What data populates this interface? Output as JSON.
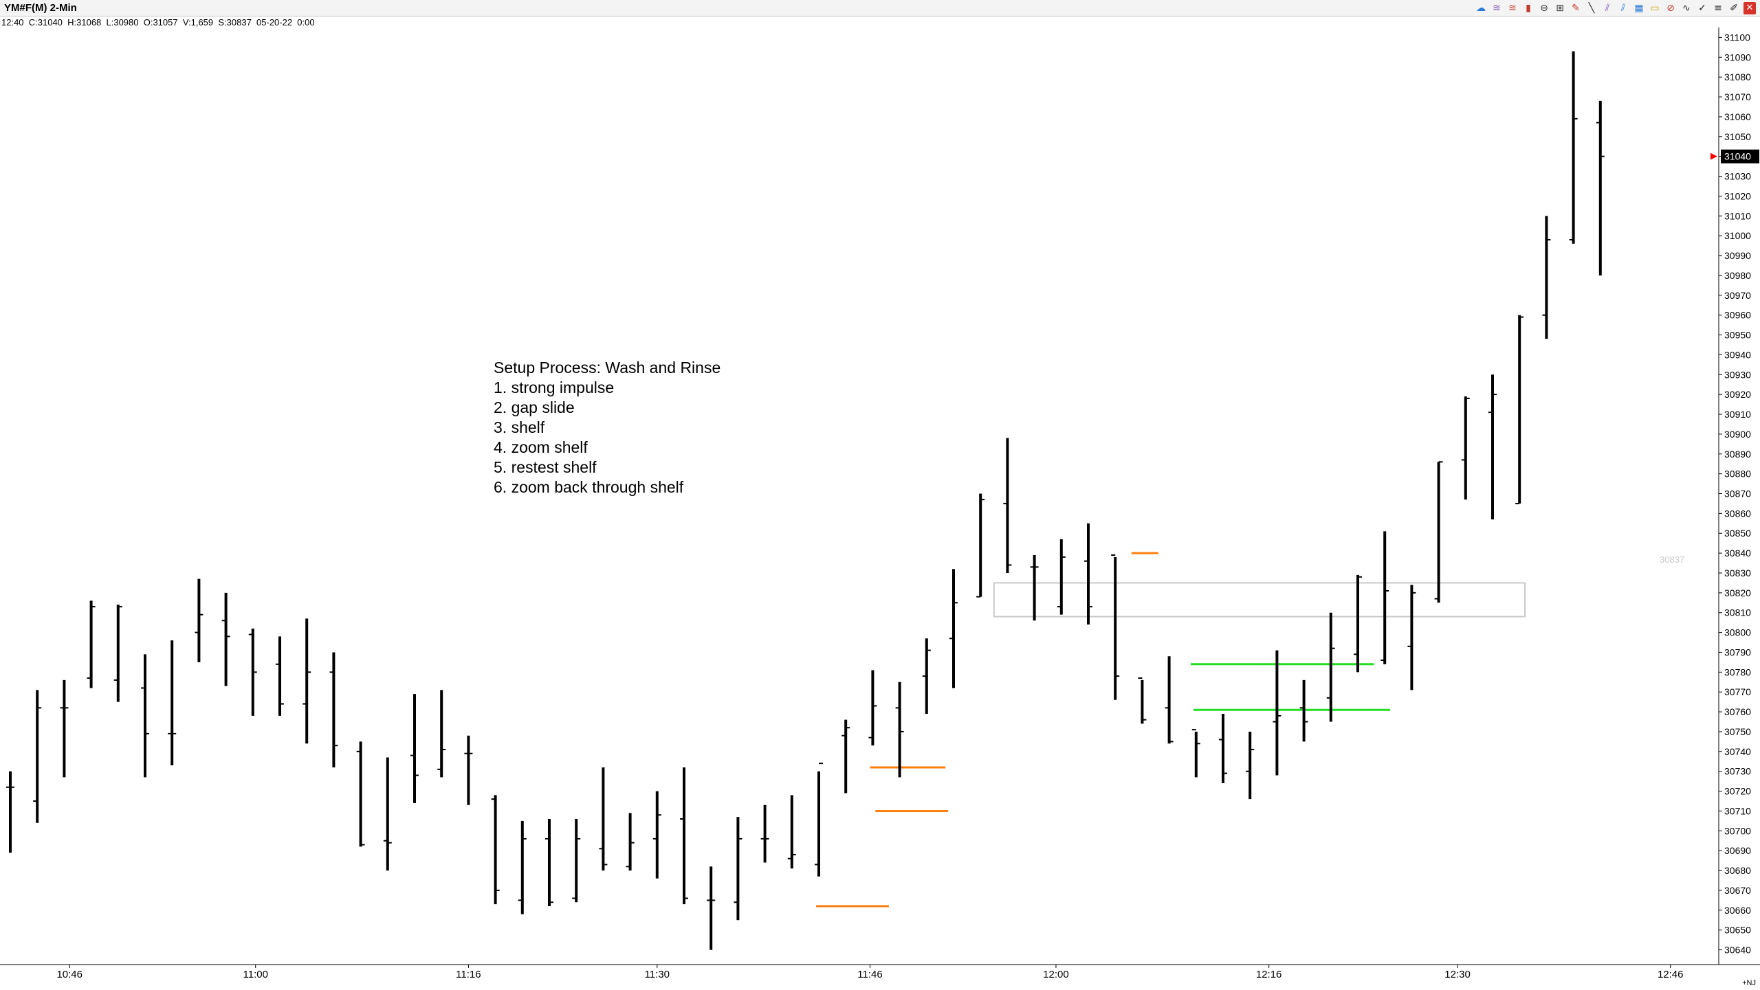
{
  "window": {
    "title": "YM#F(M) 2-Min",
    "info_line": "12:40  C:31040  H:31068  L:30980  O:31057  V:1,659  S:30837  05-20-22  0:00"
  },
  "toolbar": [
    {
      "icon": "cloud-icon",
      "glyph": "☁",
      "color": "#2a7bd8"
    },
    {
      "icon": "waves-icon",
      "glyph": "≋",
      "color": "#7a4fb0"
    },
    {
      "icon": "fan-icon",
      "glyph": "≋",
      "color": "#c0392b"
    },
    {
      "icon": "candle-icon",
      "glyph": "▮",
      "color": "#c0392b"
    },
    {
      "icon": "circle-icon",
      "glyph": "⊖",
      "color": "#333333"
    },
    {
      "icon": "grid-icon",
      "glyph": "⊞",
      "color": "#333333"
    },
    {
      "icon": "pencil-icon",
      "glyph": "✎",
      "color": "#c0392b"
    },
    {
      "icon": "line-icon",
      "glyph": "╲",
      "color": "#222222"
    },
    {
      "icon": "channel-icon",
      "glyph": "⫽",
      "color": "#7a4fb0"
    },
    {
      "icon": "parallel-icon",
      "glyph": "⫽",
      "color": "#2a7bd8"
    },
    {
      "icon": "table-icon",
      "glyph": "▦",
      "color": "#2a7bd8"
    },
    {
      "icon": "rectangle-icon",
      "glyph": "▭",
      "color": "#c9a400"
    },
    {
      "icon": "ellipse-icon",
      "glyph": "⊘",
      "color": "#c0392b"
    },
    {
      "icon": "curve-icon",
      "glyph": "∿",
      "color": "#222222"
    },
    {
      "icon": "check-icon",
      "glyph": "✓",
      "color": "#222222"
    },
    {
      "icon": "ruler-icon",
      "glyph": "≡",
      "color": "#222222"
    },
    {
      "icon": "pin-icon",
      "glyph": "✐",
      "color": "#222222"
    },
    {
      "icon": "close-icon",
      "glyph": "✕",
      "color": "#ffffff"
    }
  ],
  "annotation": [
    "Setup Process: Wash and Rinse",
    "1. strong impulse",
    "2. gap slide",
    "3. shelf",
    "4. zoom shelf",
    "5. restest shelf",
    "6. zoom back through shelf"
  ],
  "bottom_tag": "+NJ",
  "chart_data": {
    "type": "ohlc-bar",
    "symbol": "YM#F(M)",
    "interval": "2-Min",
    "ylim": [
      30635,
      31105
    ],
    "y_ticks": [
      30640,
      30650,
      30660,
      30670,
      30680,
      30690,
      30700,
      30710,
      30720,
      30730,
      30740,
      30750,
      30760,
      30770,
      30780,
      30790,
      30800,
      30810,
      30820,
      30830,
      30840,
      30850,
      30860,
      30870,
      30880,
      30890,
      30900,
      30910,
      30920,
      30930,
      30940,
      30950,
      30960,
      30970,
      30980,
      30990,
      31000,
      31010,
      31020,
      31030,
      31040,
      31050,
      31060,
      31070,
      31080,
      31090,
      31100
    ],
    "x_ticks": [
      {
        "label": "10:46",
        "bar": 2.2
      },
      {
        "label": "11:00",
        "bar": 9.1
      },
      {
        "label": "11:16",
        "bar": 17.0
      },
      {
        "label": "11:30",
        "bar": 24.0
      },
      {
        "label": "11:46",
        "bar": 31.9
      },
      {
        "label": "12:00",
        "bar": 38.8
      },
      {
        "label": "12:16",
        "bar": 46.7
      },
      {
        "label": "12:30",
        "bar": 53.7
      },
      {
        "label": "12:46",
        "bar": 61.6
      }
    ],
    "last_price": 31040,
    "last_price_color": "#ff0000",
    "faded_price_label": "30837",
    "bars": [
      {
        "o": 30722,
        "h": 30730,
        "l": 30689,
        "c": 30722
      },
      {
        "o": 30715,
        "h": 30771,
        "l": 30704,
        "c": 30762
      },
      {
        "o": 30762,
        "h": 30776,
        "l": 30727,
        "c": 30762
      },
      {
        "o": 30777,
        "h": 30816,
        "l": 30772,
        "c": 30813
      },
      {
        "o": 30776,
        "h": 30814,
        "l": 30765,
        "c": 30813
      },
      {
        "o": 30772,
        "h": 30789,
        "l": 30727,
        "c": 30749
      },
      {
        "o": 30749,
        "h": 30796,
        "l": 30733,
        "c": 30749
      },
      {
        "o": 30800,
        "h": 30827,
        "l": 30785,
        "c": 30809
      },
      {
        "o": 30806,
        "h": 30820,
        "l": 30773,
        "c": 30798
      },
      {
        "o": 30799,
        "h": 30802,
        "l": 30758,
        "c": 30780
      },
      {
        "o": 30784,
        "h": 30798,
        "l": 30758,
        "c": 30764
      },
      {
        "o": 30764,
        "h": 30807,
        "l": 30744,
        "c": 30780
      },
      {
        "o": 30780,
        "h": 30790,
        "l": 30732,
        "c": 30743
      },
      {
        "o": 30740,
        "h": 30745,
        "l": 30692,
        "c": 30693
      },
      {
        "o": 30695,
        "h": 30737,
        "l": 30680,
        "c": 30694
      },
      {
        "o": 30738,
        "h": 30769,
        "l": 30714,
        "c": 30728
      },
      {
        "o": 30731,
        "h": 30771,
        "l": 30727,
        "c": 30741
      },
      {
        "o": 30739,
        "h": 30748,
        "l": 30713,
        "c": 30739
      },
      {
        "o": 30716,
        "h": 30718,
        "l": 30663,
        "c": 30670
      },
      {
        "o": 30665,
        "h": 30705,
        "l": 30658,
        "c": 30696
      },
      {
        "o": 30696,
        "h": 30706,
        "l": 30662,
        "c": 30664
      },
      {
        "o": 30666,
        "h": 30706,
        "l": 30664,
        "c": 30696
      },
      {
        "o": 30691,
        "h": 30732,
        "l": 30680,
        "c": 30683
      },
      {
        "o": 30682,
        "h": 30709,
        "l": 30680,
        "c": 30694
      },
      {
        "o": 30696,
        "h": 30720,
        "l": 30676,
        "c": 30708
      },
      {
        "o": 30706,
        "h": 30732,
        "l": 30663,
        "c": 30666
      },
      {
        "o": 30665,
        "h": 30682,
        "l": 30640,
        "c": 30665
      },
      {
        "o": 30664,
        "h": 30707,
        "l": 30655,
        "c": 30696
      },
      {
        "o": 30696,
        "h": 30713,
        "l": 30684,
        "c": 30696
      },
      {
        "o": 30686,
        "h": 30718,
        "l": 30681,
        "c": 30688
      },
      {
        "o": 30683,
        "h": 30730,
        "l": 30677,
        "c": 30734
      },
      {
        "o": 30748,
        "h": 30756,
        "l": 30719,
        "c": 30752
      },
      {
        "o": 30747,
        "h": 30781,
        "l": 30743,
        "c": 30763
      },
      {
        "o": 30762,
        "h": 30775,
        "l": 30727,
        "c": 30750
      },
      {
        "o": 30778,
        "h": 30797,
        "l": 30759,
        "c": 30791
      },
      {
        "o": 30797,
        "h": 30832,
        "l": 30772,
        "c": 30815
      },
      {
        "o": 30818,
        "h": 30870,
        "l": 30818,
        "c": 30867
      },
      {
        "o": 30865,
        "h": 30898,
        "l": 30830,
        "c": 30834
      },
      {
        "o": 30833,
        "h": 30839,
        "l": 30806,
        "c": 30833
      },
      {
        "o": 30813,
        "h": 30847,
        "l": 30809,
        "c": 30838
      },
      {
        "o": 30836,
        "h": 30855,
        "l": 30804,
        "c": 30813
      },
      {
        "o": 30839,
        "h": 30838,
        "l": 30766,
        "c": 30778
      },
      {
        "o": 30777,
        "h": 30776,
        "l": 30754,
        "c": 30756
      },
      {
        "o": 30762,
        "h": 30788,
        "l": 30744,
        "c": 30745
      },
      {
        "o": 30751,
        "h": 30750,
        "l": 30727,
        "c": 30744
      },
      {
        "o": 30746,
        "h": 30759,
        "l": 30724,
        "c": 30729
      },
      {
        "o": 30730,
        "h": 30750,
        "l": 30716,
        "c": 30741
      },
      {
        "o": 30755,
        "h": 30791,
        "l": 30728,
        "c": 30758
      },
      {
        "o": 30762,
        "h": 30776,
        "l": 30745,
        "c": 30755
      },
      {
        "o": 30767,
        "h": 30810,
        "l": 30755,
        "c": 30792
      },
      {
        "o": 30789,
        "h": 30829,
        "l": 30780,
        "c": 30828
      },
      {
        "o": 30786,
        "h": 30851,
        "l": 30784,
        "c": 30821
      },
      {
        "o": 30793,
        "h": 30824,
        "l": 30771,
        "c": 30820
      },
      {
        "o": 30817,
        "h": 30886,
        "l": 30815,
        "c": 30886
      },
      {
        "o": 30887,
        "h": 30919,
        "l": 30867,
        "c": 30918
      },
      {
        "o": 30911,
        "h": 30930,
        "l": 30857,
        "c": 30920
      },
      {
        "o": 30865,
        "h": 30960,
        "l": 30865,
        "c": 30959
      },
      {
        "o": 30960,
        "h": 31010,
        "l": 30948,
        "c": 30998
      },
      {
        "o": 30998,
        "h": 31093,
        "l": 30996,
        "c": 31059
      },
      {
        "o": 31057,
        "h": 31068,
        "l": 30980,
        "c": 31040
      }
    ],
    "drawings": {
      "box": {
        "x0": 36.5,
        "x1": 56.2,
        "y_top": 30825,
        "y_bottom": 30808,
        "color": "#c8c8c8"
      },
      "orange_lines": [
        {
          "x0": 29.9,
          "x1": 32.6,
          "y": 30662,
          "color": "#ff7f0e"
        },
        {
          "x0": 31.9,
          "x1": 34.7,
          "y": 30732,
          "color": "#ff7f0e"
        },
        {
          "x0": 32.1,
          "x1": 34.8,
          "y": 30710,
          "color": "#ff7f0e"
        },
        {
          "x0": 41.6,
          "x1": 42.6,
          "y": 30840,
          "color": "#ff7f0e"
        }
      ],
      "green_lines": [
        {
          "x0": 43.8,
          "x1": 50.6,
          "y": 30784,
          "color": "#22dd22"
        },
        {
          "x0": 43.9,
          "x1": 51.2,
          "y": 30761,
          "color": "#22dd22"
        }
      ]
    }
  }
}
